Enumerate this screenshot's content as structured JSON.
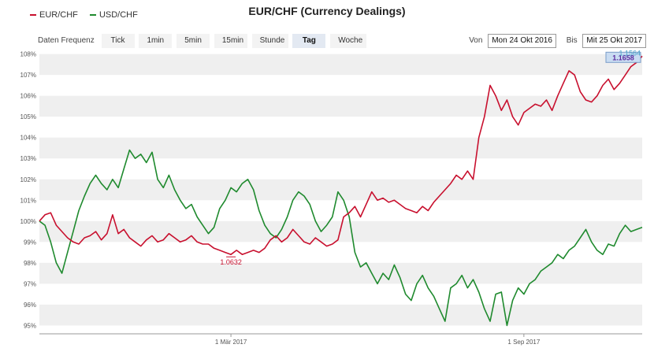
{
  "header": {
    "title": "EUR/CHF (Currency Dealings)"
  },
  "legend": [
    {
      "label": "EUR/CHF",
      "color": "#c8102e"
    },
    {
      "label": "USD/CHF",
      "color": "#1f8a2e"
    }
  ],
  "frequency": {
    "label": "Daten Frequenz",
    "options": [
      "Tick",
      "1min",
      "5min",
      "15min",
      "Stunde",
      "Tag",
      "Woche"
    ],
    "active": "Tag"
  },
  "date_range": {
    "from_label": "Von",
    "from_value": "Mon 24 Okt 2016",
    "to_label": "Bis",
    "to_value": "Mit 25 Okt 2017"
  },
  "chart_data": {
    "type": "line",
    "title": "EUR/CHF (Currency Dealings)",
    "ylabel": "",
    "xlabel": "",
    "ylim": [
      94.6,
      108.1
    ],
    "y_ticks": [
      "95%",
      "96%",
      "97%",
      "98%",
      "99%",
      "100%",
      "101%",
      "102%",
      "103%",
      "104%",
      "105%",
      "106%",
      "107%",
      "108%"
    ],
    "y_tick_values": [
      95,
      96,
      97,
      98,
      99,
      100,
      101,
      102,
      103,
      104,
      105,
      106,
      107,
      108
    ],
    "x_ticks": [
      {
        "label": "1 Mär 2017",
        "x": 34
      },
      {
        "label": "1 Sep 2017",
        "x": 86
      }
    ],
    "x_range": [
      0,
      107
    ],
    "grid": "alternating horizontal bands",
    "legend": "top-left",
    "series": [
      {
        "name": "EUR/CHF",
        "color": "#c8102e",
        "x": [
          0,
          1,
          2,
          3,
          4,
          5,
          6,
          7,
          8,
          9,
          10,
          11,
          12,
          13,
          14,
          15,
          16,
          17,
          18,
          19,
          20,
          21,
          22,
          23,
          24,
          25,
          26,
          27,
          28,
          29,
          30,
          31,
          32,
          33,
          34,
          35,
          36,
          37,
          38,
          39,
          40,
          41,
          42,
          43,
          44,
          45,
          46,
          47,
          48,
          49,
          50,
          51,
          52,
          53,
          54,
          55,
          56,
          57,
          58,
          59,
          60,
          61,
          62,
          63,
          64,
          65,
          66,
          67,
          68,
          69,
          70,
          71,
          72,
          73,
          74,
          75,
          76,
          77,
          78,
          79,
          80,
          81,
          82,
          83,
          84,
          85,
          86,
          87,
          88,
          89,
          90,
          91,
          92,
          93,
          94,
          95,
          96,
          97,
          98,
          99,
          100,
          101,
          102,
          103,
          104,
          105,
          106,
          107
        ],
        "y": [
          100.0,
          100.3,
          100.4,
          99.8,
          99.5,
          99.2,
          99.0,
          98.9,
          99.2,
          99.3,
          99.5,
          99.1,
          99.4,
          100.3,
          99.4,
          99.6,
          99.2,
          99.0,
          98.8,
          99.1,
          99.3,
          99.0,
          99.1,
          99.4,
          99.2,
          99.0,
          99.1,
          99.3,
          99.0,
          98.9,
          98.9,
          98.7,
          98.6,
          98.5,
          98.4,
          98.6,
          98.4,
          98.5,
          98.6,
          98.5,
          98.7,
          99.1,
          99.3,
          99.0,
          99.2,
          99.6,
          99.3,
          99.0,
          98.9,
          99.2,
          99.0,
          98.8,
          98.9,
          99.1,
          100.2,
          100.4,
          100.7,
          100.2,
          100.8,
          101.4,
          101.0,
          101.1,
          100.9,
          101.0,
          100.8,
          100.6,
          100.5,
          100.4,
          100.7,
          100.5,
          100.9,
          101.2,
          101.5,
          101.8,
          102.2,
          102.0,
          102.4,
          102.0,
          104.0,
          105.0,
          106.5,
          106.0,
          105.3,
          105.8,
          105.0,
          104.6,
          105.2,
          105.4,
          105.6,
          105.5,
          105.8,
          105.3,
          106.0,
          106.6,
          107.2,
          107.0,
          106.2,
          105.8,
          105.7,
          106.0,
          106.5,
          106.8,
          106.3,
          106.6,
          107.0,
          107.4,
          107.6,
          107.9
        ]
      },
      {
        "name": "USD/CHF",
        "color": "#1f8a2e",
        "x": [
          0,
          1,
          2,
          3,
          4,
          5,
          6,
          7,
          8,
          9,
          10,
          11,
          12,
          13,
          14,
          15,
          16,
          17,
          18,
          19,
          20,
          21,
          22,
          23,
          24,
          25,
          26,
          27,
          28,
          29,
          30,
          31,
          32,
          33,
          34,
          35,
          36,
          37,
          38,
          39,
          40,
          41,
          42,
          43,
          44,
          45,
          46,
          47,
          48,
          49,
          50,
          51,
          52,
          53,
          54,
          55,
          56,
          57,
          58,
          59,
          60,
          61,
          62,
          63,
          64,
          65,
          66,
          67,
          68,
          69,
          70,
          71,
          72,
          73,
          74,
          75,
          76,
          77,
          78,
          79,
          80,
          81,
          82,
          83,
          84,
          85,
          86,
          87,
          88,
          89,
          90,
          91,
          92,
          93,
          94,
          95,
          96,
          97,
          98,
          99,
          100,
          101,
          102,
          103,
          104,
          105,
          106,
          107
        ],
        "y": [
          100.0,
          99.8,
          99.0,
          98.0,
          97.5,
          98.5,
          99.5,
          100.5,
          101.2,
          101.8,
          102.2,
          101.8,
          101.5,
          102.0,
          101.6,
          102.5,
          103.4,
          103.0,
          103.2,
          102.8,
          103.3,
          102.0,
          101.6,
          102.2,
          101.5,
          101.0,
          100.6,
          100.8,
          100.2,
          99.8,
          99.4,
          99.7,
          100.6,
          101.0,
          101.6,
          101.4,
          101.8,
          102.0,
          101.5,
          100.5,
          99.8,
          99.4,
          99.2,
          99.6,
          100.2,
          101.0,
          101.4,
          101.2,
          100.8,
          100.0,
          99.5,
          99.8,
          100.2,
          101.4,
          101.0,
          100.2,
          98.5,
          97.8,
          98.0,
          97.5,
          97.0,
          97.5,
          97.2,
          97.9,
          97.3,
          96.5,
          96.2,
          97.0,
          97.4,
          96.8,
          96.4,
          95.8,
          95.2,
          96.8,
          97.0,
          97.4,
          96.8,
          97.2,
          96.6,
          95.8,
          95.2,
          96.5,
          96.6,
          95.0,
          96.2,
          96.8,
          96.5,
          97.0,
          97.2,
          97.6,
          97.8,
          98.0,
          98.4,
          98.2,
          98.6,
          98.8,
          99.2,
          99.6,
          99.0,
          98.6,
          98.4,
          98.9,
          98.8,
          99.4,
          99.8,
          99.5,
          99.6,
          99.7
        ]
      }
    ],
    "annotations": [
      {
        "text": "1.0632",
        "series": "EUR/CHF"
      },
      {
        "text": "1.1658",
        "series": "EUR/CHF"
      },
      {
        "text": "1.1564",
        "series": "EUR/CHF"
      }
    ]
  }
}
